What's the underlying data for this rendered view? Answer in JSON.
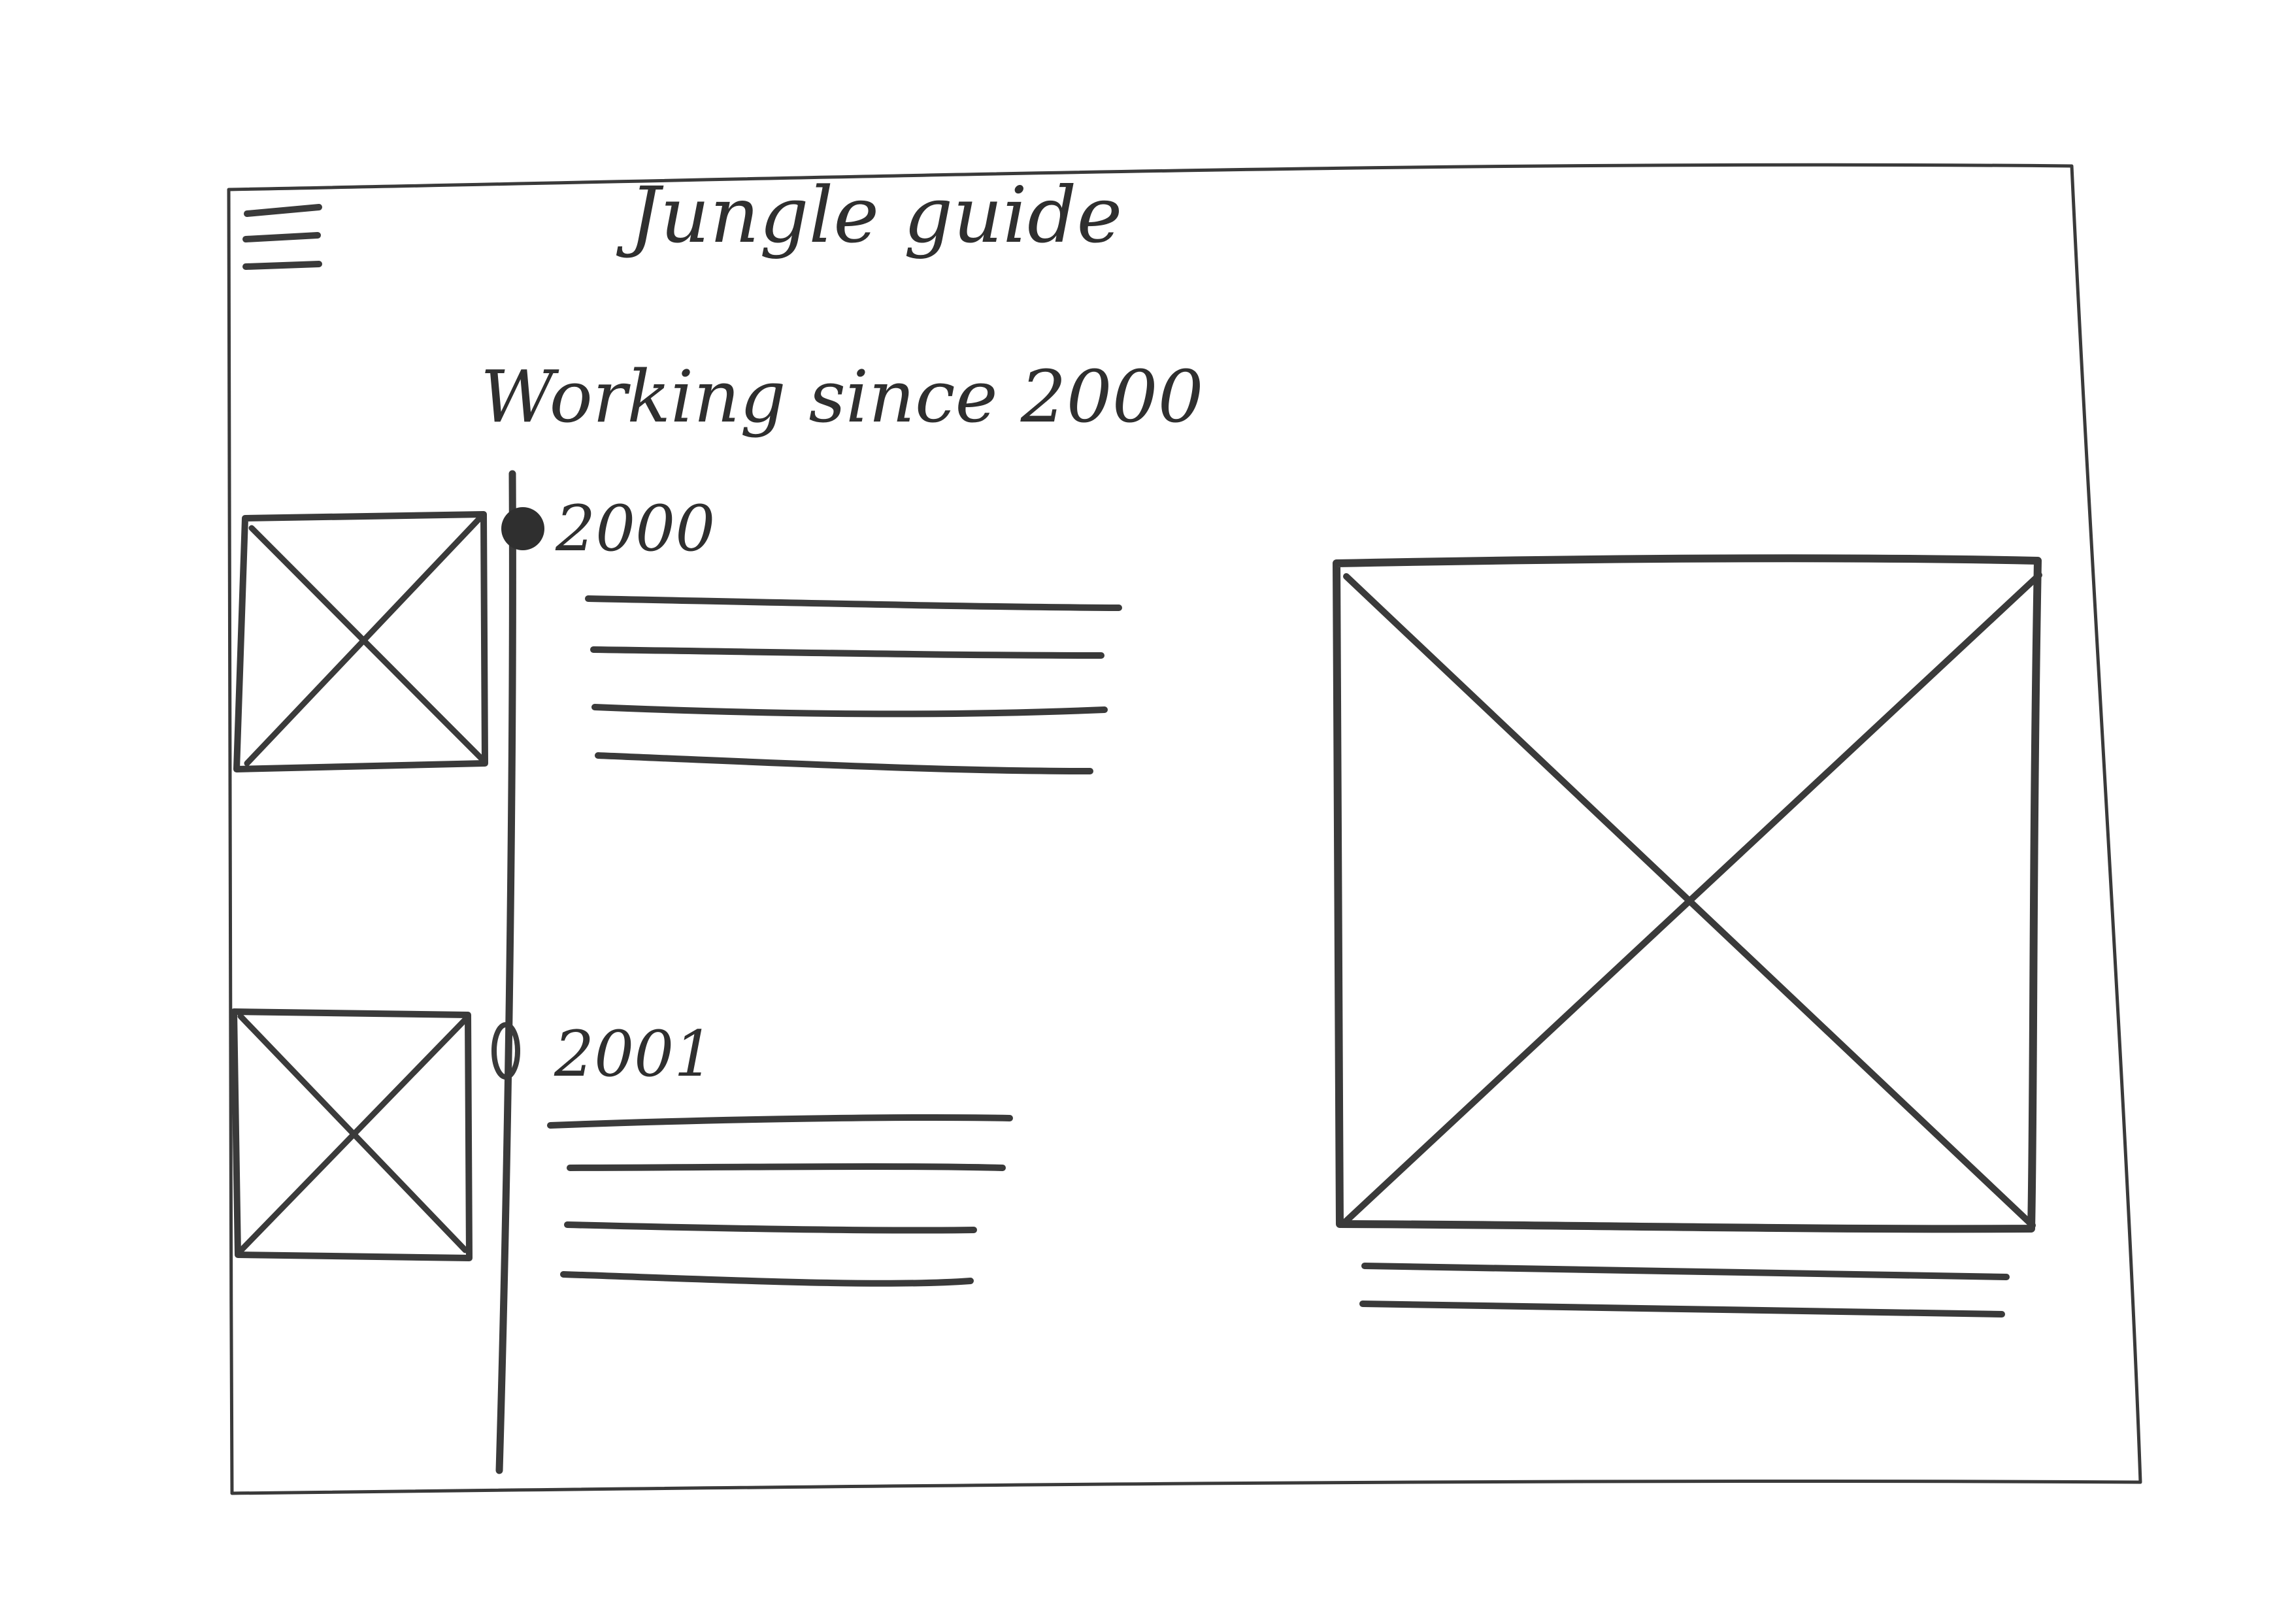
{
  "app": {
    "title": "Jungle guide"
  },
  "header": {
    "menu_icon": "hamburger-menu-icon"
  },
  "main": {
    "heading": "Working since 2000",
    "timeline": {
      "entries": [
        {
          "year": "2000",
          "marker": "filled",
          "image_icon": "image-placeholder-icon",
          "text_lines": 4
        },
        {
          "year": "2001",
          "marker": "hollow",
          "image_icon": "image-placeholder-icon",
          "text_lines": 4
        }
      ]
    },
    "feature": {
      "image_icon": "image-placeholder-icon",
      "caption_lines": 2
    }
  },
  "colors": {
    "ink": "#3a3a3a",
    "paper": "#ffffff"
  }
}
